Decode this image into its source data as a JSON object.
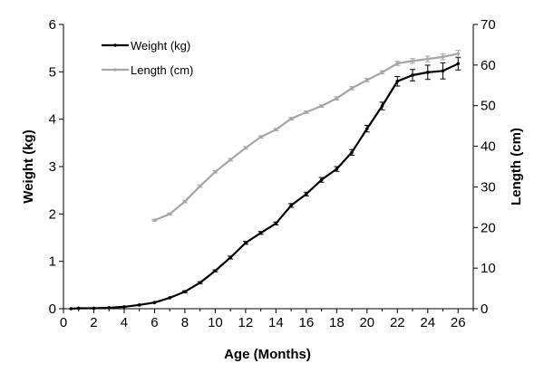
{
  "chart_data": {
    "type": "line",
    "xlabel": "Age (Months)",
    "ylabel": "Weight (kg)",
    "y2label": "Length (cm)",
    "xlim": [
      0,
      27
    ],
    "ylim": [
      0,
      6
    ],
    "y2lim": [
      0,
      70
    ],
    "x_ticks": [
      0,
      2,
      4,
      6,
      8,
      10,
      12,
      14,
      16,
      18,
      20,
      22,
      24,
      26
    ],
    "y_ticks": [
      0,
      1,
      2,
      3,
      4,
      5,
      6
    ],
    "y2_ticks": [
      0,
      10,
      20,
      30,
      40,
      50,
      60,
      70
    ],
    "legend_position": "top-left",
    "grid": false,
    "series": [
      {
        "name": "Weight (kg)",
        "axis": "left",
        "color": "#000000",
        "x": [
          0.5,
          1,
          2,
          3,
          4,
          5,
          6,
          7,
          8,
          9,
          10,
          11,
          12,
          13,
          14,
          15,
          16,
          17,
          18,
          19,
          20,
          21,
          22,
          23,
          24,
          25,
          26
        ],
        "values": [
          0.0,
          0.01,
          0.01,
          0.02,
          0.04,
          0.08,
          0.13,
          0.23,
          0.36,
          0.55,
          0.8,
          1.08,
          1.39,
          1.6,
          1.8,
          2.18,
          2.42,
          2.72,
          2.95,
          3.3,
          3.8,
          4.28,
          4.8,
          4.93,
          4.99,
          5.02,
          5.17
        ],
        "errors": [
          0,
          0,
          0,
          0,
          0,
          0,
          0,
          0,
          0.02,
          0.02,
          0.02,
          0.03,
          0.03,
          0.03,
          0.03,
          0.04,
          0.04,
          0.05,
          0.05,
          0.06,
          0.07,
          0.08,
          0.1,
          0.12,
          0.15,
          0.17,
          0.13
        ]
      },
      {
        "name": "Length (cm)",
        "axis": "right",
        "color": "#a6a6a6",
        "x": [
          6,
          7,
          8,
          9,
          10,
          11,
          12,
          13,
          14,
          15,
          16,
          17,
          18,
          19,
          20,
          21,
          22,
          23,
          24,
          25,
          26
        ],
        "values": [
          21.8,
          23.3,
          26.4,
          30.2,
          33.7,
          36.7,
          39.6,
          42.3,
          44.1,
          46.8,
          48.4,
          49.9,
          51.8,
          54.3,
          56.3,
          58.2,
          60.4,
          61.0,
          61.5,
          62.0,
          62.8
        ],
        "errors": [
          0.2,
          0.2,
          0.3,
          0.3,
          0.3,
          0.3,
          0.3,
          0.3,
          0.3,
          0.3,
          0.3,
          0.3,
          0.4,
          0.4,
          0.4,
          0.4,
          0.5,
          0.6,
          0.7,
          0.7,
          0.8
        ]
      }
    ]
  }
}
